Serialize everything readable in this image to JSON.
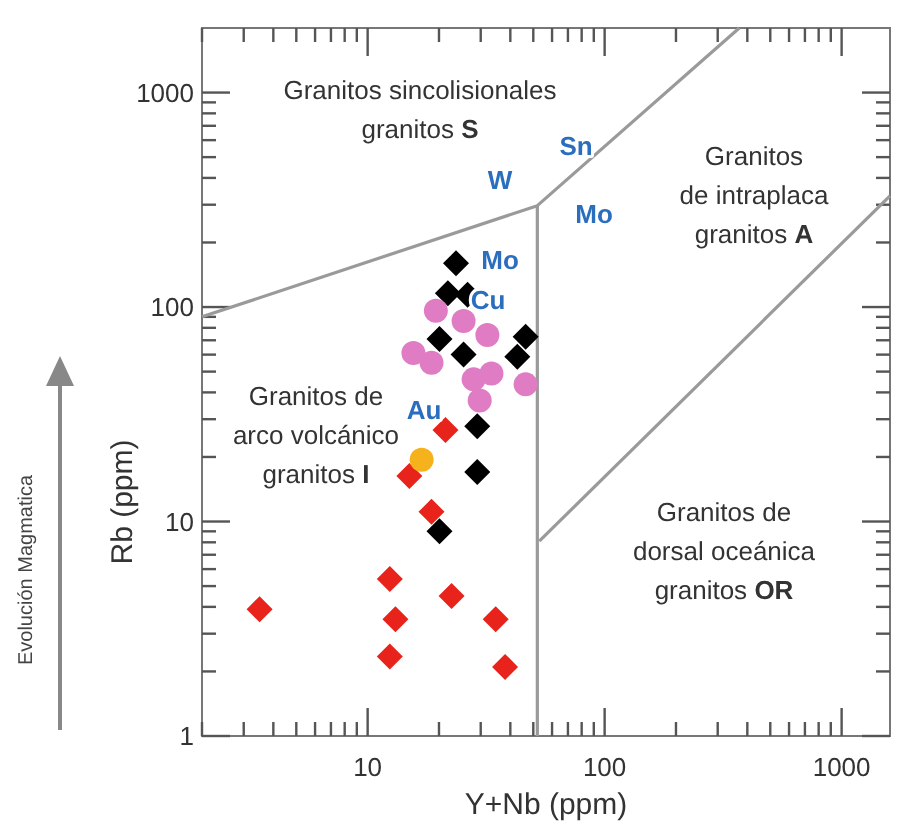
{
  "chart_data": {
    "type": "scatter",
    "xlabel": "Y+Nb (ppm)",
    "ylabel": "Rb (ppm)",
    "log": "xy",
    "grid": false,
    "xlim": [
      2,
      1600
    ],
    "ylim": [
      1,
      2000
    ],
    "xticks": [
      {
        "value": 2,
        "label": null
      },
      {
        "value": 3,
        "label": null
      },
      {
        "value": 4,
        "label": null
      },
      {
        "value": 5,
        "label": null
      },
      {
        "value": 6,
        "label": null
      },
      {
        "value": 7,
        "label": null
      },
      {
        "value": 8,
        "label": null
      },
      {
        "value": 9,
        "label": null
      },
      10,
      {
        "value": 20,
        "label": null
      },
      {
        "value": 30,
        "label": null
      },
      {
        "value": 40,
        "label": null
      },
      {
        "value": 50,
        "label": null
      },
      {
        "value": 60,
        "label": null
      },
      {
        "value": 70,
        "label": null
      },
      {
        "value": 80,
        "label": null
      },
      {
        "value": 90,
        "label": null
      },
      100,
      {
        "value": 200,
        "label": null
      },
      {
        "value": 300,
        "label": null
      },
      {
        "value": 400,
        "label": null
      },
      {
        "value": 500,
        "label": null
      },
      {
        "value": 600,
        "label": null
      },
      {
        "value": 700,
        "label": null
      },
      {
        "value": 800,
        "label": null
      },
      {
        "value": 900,
        "label": null
      },
      1000
    ],
    "yticks": [
      1,
      {
        "value": 2,
        "label": null
      },
      {
        "value": 3,
        "label": null
      },
      {
        "value": 4,
        "label": null
      },
      {
        "value": 5,
        "label": null
      },
      {
        "value": 6,
        "label": null
      },
      {
        "value": 7,
        "label": null
      },
      {
        "value": 8,
        "label": null
      },
      {
        "value": 9,
        "label": null
      },
      10,
      {
        "value": 20,
        "label": null
      },
      {
        "value": 30,
        "label": null
      },
      {
        "value": 40,
        "label": null
      },
      {
        "value": 50,
        "label": null
      },
      {
        "value": 60,
        "label": null
      },
      {
        "value": 70,
        "label": null
      },
      {
        "value": 80,
        "label": null
      },
      {
        "value": 90,
        "label": null
      },
      100,
      {
        "value": 200,
        "label": null
      },
      {
        "value": 300,
        "label": null
      },
      {
        "value": 400,
        "label": null
      },
      {
        "value": 500,
        "label": null
      },
      {
        "value": 600,
        "label": null
      },
      {
        "value": 700,
        "label": null
      },
      {
        "value": 800,
        "label": null
      },
      {
        "value": 900,
        "label": null
      },
      1000
    ],
    "series": [
      {
        "type": "line",
        "color": "#9a9a9a",
        "marker": "none",
        "line_style": "solid",
        "x": [
          2,
          52,
          370
        ],
        "values": [
          90,
          297,
          2000
        ]
      },
      {
        "type": "line",
        "color": "#9a9a9a",
        "marker": "none",
        "line_style": "solid",
        "x": [
          52,
          52
        ],
        "values": [
          297,
          1
        ]
      },
      {
        "type": "line",
        "color": "#9a9a9a",
        "marker": "none",
        "line_style": "solid",
        "x": [
          53,
          1600
        ],
        "values": [
          8.1,
          330
        ]
      },
      {
        "color": "#e8231c",
        "marker": "diamond",
        "x": [
          3.5,
          12.4,
          13.1,
          12.4,
          22.6,
          34.7,
          38,
          15,
          18.6,
          21.3
        ],
        "values": [
          3.9,
          5.4,
          3.5,
          2.35,
          4.5,
          3.5,
          2.1,
          16.3,
          11.1,
          26.7
        ]
      },
      {
        "color": "#000000",
        "marker": "diamond",
        "x": [
          20.1,
          29,
          29,
          23.6,
          21.8,
          26.4,
          20.1,
          25.4,
          46.4,
          42.8
        ],
        "values": [
          9.0,
          17,
          27.8,
          160,
          116,
          114,
          71,
          60,
          72.6,
          58.7
        ]
      },
      {
        "color": "#e07cc4",
        "marker": "circle",
        "x": [
          19.4,
          25.4,
          32,
          15.6,
          18.6,
          28,
          33.3,
          46.4,
          29.7
        ],
        "values": [
          96,
          86,
          74,
          61,
          55,
          46,
          49,
          43.6,
          36.7
        ]
      },
      {
        "color": "#f5b21c",
        "marker": "circle",
        "x": [
          16.9
        ],
        "values": [
          19.4
        ]
      }
    ],
    "annotations": [
      "Granitos sincolisionales\ngranitos S",
      "Granitos\nde intraplaca\ngranitos A",
      "Granitos de\narco volcánico\ngranitos I",
      "Granitos de\ndorsal oceánica\ngranitos OR",
      "W",
      "Sn",
      "Mo",
      "Mo",
      "Cu",
      "Au",
      "Evolución Magmatica"
    ]
  }
}
